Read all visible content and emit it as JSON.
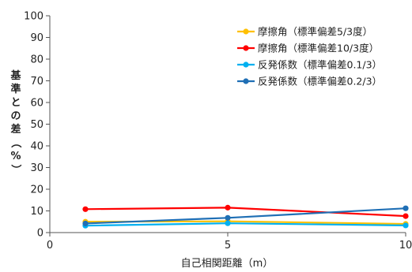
{
  "chart_data": {
    "type": "line",
    "xlabel": "自己相関距離（m）",
    "ylabel": "基準との差（%）",
    "xlim": [
      0,
      10
    ],
    "ylim": [
      0,
      100
    ],
    "xticks": [
      "0",
      "5",
      "10"
    ],
    "yticks": [
      "0",
      "10",
      "20",
      "30",
      "40",
      "50",
      "60",
      "70",
      "80",
      "90",
      "100"
    ],
    "grid": false,
    "legend_position": "top-right",
    "series": [
      {
        "name": "摩擦角（標準偏差5/3度）",
        "color": "#ffc000",
        "x": [
          1,
          5,
          10
        ],
        "y": [
          5,
          5.2,
          4
        ]
      },
      {
        "name": "摩擦角（標準偏差10/3度）",
        "color": "#ff0000",
        "x": [
          1,
          5,
          10
        ],
        "y": [
          10.8,
          11.5,
          7.6
        ]
      },
      {
        "name": "反発係数（標準偏差0.1/3）",
        "color": "#00b0f0",
        "x": [
          1,
          5,
          10
        ],
        "y": [
          3.2,
          4.3,
          3.3
        ]
      },
      {
        "name": "反発係数（標準偏差0.2/3）",
        "color": "#1f6fb5",
        "x": [
          1,
          5,
          10
        ],
        "y": [
          4.2,
          6.8,
          11.2
        ]
      }
    ]
  }
}
